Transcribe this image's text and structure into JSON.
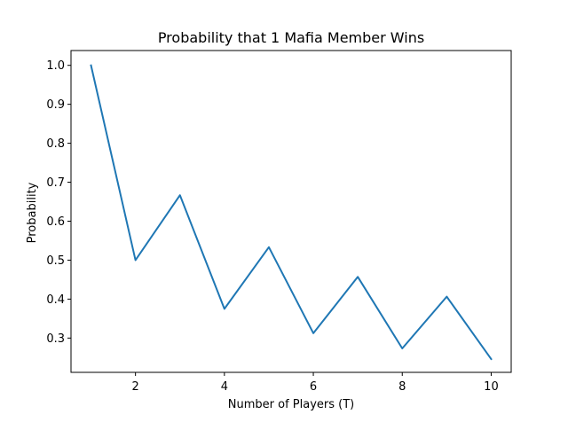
{
  "chart_data": {
    "type": "line",
    "title": "Probability that 1 Mafia Member Wins",
    "xlabel": "Number of Players (T)",
    "ylabel": "Probability",
    "xlim": [
      0.55,
      10.45
    ],
    "ylim": [
      0.212,
      1.038
    ],
    "x_ticks": [
      2,
      4,
      6,
      8,
      10
    ],
    "y_ticks": [
      0.3,
      0.4,
      0.5,
      0.6,
      0.7,
      0.8,
      0.9,
      1.0
    ],
    "x_tick_labels": [
      "2",
      "4",
      "6",
      "8",
      "10"
    ],
    "y_tick_labels": [
      "0.3",
      "0.4",
      "0.5",
      "0.6",
      "0.7",
      "0.8",
      "0.9",
      "1.0"
    ],
    "grid": false,
    "series": [
      {
        "name": "probability",
        "color": "#1f77b4",
        "x": [
          1,
          2,
          3,
          4,
          5,
          6,
          7,
          8,
          9,
          10
        ],
        "y": [
          1.0,
          0.5,
          0.6667,
          0.375,
          0.5333,
          0.3125,
          0.4571,
          0.2734,
          0.4063,
          0.2461
        ]
      }
    ]
  }
}
